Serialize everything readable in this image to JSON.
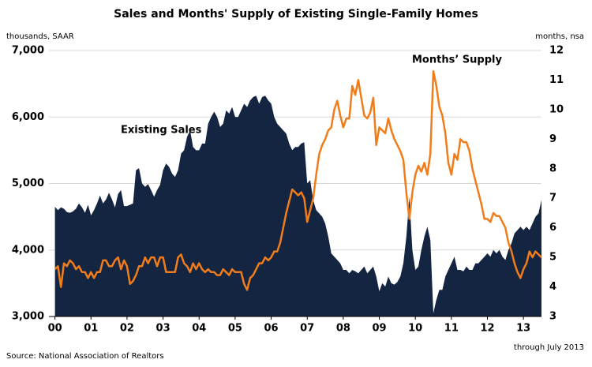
{
  "chart_data": {
    "type": "area-line",
    "title": "Sales and Months' Supply of Existing Single-Family Homes",
    "y_label": "thousands, SAAR",
    "y2_label": "months, nsa",
    "source": "Source: National Association of Realtors",
    "note": "through July 2013",
    "xlim": [
      -2,
      162
    ],
    "xticks": [
      {
        "value": 0,
        "label": "00"
      },
      {
        "value": 12,
        "label": "01"
      },
      {
        "value": 24,
        "label": "02"
      },
      {
        "value": 36,
        "label": "03"
      },
      {
        "value": 48,
        "label": "04"
      },
      {
        "value": 60,
        "label": "05"
      },
      {
        "value": 72,
        "label": "06"
      },
      {
        "value": 84,
        "label": "07"
      },
      {
        "value": 96,
        "label": "08"
      },
      {
        "value": 108,
        "label": "09"
      },
      {
        "value": 120,
        "label": "10"
      },
      {
        "value": 132,
        "label": "11"
      },
      {
        "value": 144,
        "label": "12"
      },
      {
        "value": 156,
        "label": "13"
      }
    ],
    "ylim": [
      3000,
      7000
    ],
    "yticks": [
      {
        "value": 3000,
        "label": "3,000"
      },
      {
        "value": 4000,
        "label": "4,000"
      },
      {
        "value": 5000,
        "label": "5,000"
      },
      {
        "value": 6000,
        "label": "6,000"
      },
      {
        "value": 7000,
        "label": "7,000"
      }
    ],
    "y2lim": [
      3,
      12
    ],
    "y2ticks": [
      3,
      4,
      5,
      6,
      7,
      8,
      9,
      10,
      11,
      12
    ],
    "grid": true,
    "series": [
      {
        "name": "Existing Sales",
        "color": "#142542",
        "kind": "area",
        "values": [
          4650,
          4600,
          4640,
          4620,
          4570,
          4560,
          4580,
          4620,
          4700,
          4640,
          4560,
          4680,
          4520,
          4600,
          4700,
          4820,
          4700,
          4760,
          4860,
          4760,
          4640,
          4840,
          4900,
          4660,
          4660,
          4680,
          4700,
          5200,
          5230,
          5000,
          4950,
          4990,
          4900,
          4800,
          4900,
          4980,
          5200,
          5300,
          5250,
          5150,
          5100,
          5200,
          5450,
          5500,
          5700,
          5800,
          5550,
          5500,
          5500,
          5600,
          5600,
          5900,
          6000,
          6080,
          6000,
          5850,
          5900,
          6100,
          6050,
          6150,
          6000,
          6000,
          6100,
          6200,
          6150,
          6250,
          6300,
          6320,
          6200,
          6300,
          6320,
          6250,
          6200,
          6000,
          5900,
          5850,
          5800,
          5750,
          5600,
          5500,
          5550,
          5550,
          5600,
          5620,
          5000,
          5050,
          4750,
          4600,
          4550,
          4500,
          4400,
          4200,
          3950,
          3900,
          3850,
          3800,
          3700,
          3700,
          3650,
          3700,
          3680,
          3650,
          3700,
          3750,
          3650,
          3700,
          3750,
          3600,
          3380,
          3500,
          3450,
          3600,
          3500,
          3480,
          3520,
          3600,
          3800,
          4200,
          4800,
          4000,
          3700,
          3750,
          4000,
          4200,
          4350,
          4150,
          3050,
          3250,
          3400,
          3400,
          3600,
          3700,
          3800,
          3900,
          3700,
          3700,
          3680,
          3750,
          3700,
          3700,
          3800,
          3800,
          3850,
          3900,
          3950,
          3900,
          4000,
          3950,
          4000,
          3900,
          3850,
          4000,
          4100,
          4250,
          4300,
          4350,
          4300,
          4350,
          4300,
          4400,
          4500,
          4550,
          4750
        ]
      },
      {
        "name": "Months’ Supply",
        "color": "#f07c1a",
        "kind": "line",
        "axis": "y2",
        "values": [
          4.6,
          4.7,
          4.0,
          4.8,
          4.7,
          4.9,
          4.8,
          4.6,
          4.7,
          4.5,
          4.5,
          4.3,
          4.5,
          4.3,
          4.5,
          4.5,
          4.9,
          4.9,
          4.7,
          4.7,
          4.9,
          5.0,
          4.6,
          4.9,
          4.7,
          4.1,
          4.2,
          4.4,
          4.7,
          4.7,
          5.0,
          4.8,
          5.0,
          5.0,
          4.7,
          5.0,
          5.0,
          4.5,
          4.5,
          4.5,
          4.5,
          5.0,
          5.1,
          4.8,
          4.7,
          4.5,
          4.8,
          4.6,
          4.8,
          4.6,
          4.5,
          4.6,
          4.5,
          4.5,
          4.4,
          4.4,
          4.6,
          4.5,
          4.4,
          4.6,
          4.5,
          4.5,
          4.5,
          4.1,
          3.9,
          4.3,
          4.4,
          4.6,
          4.8,
          4.8,
          5.0,
          4.9,
          5.0,
          5.2,
          5.2,
          5.5,
          6.0,
          6.5,
          6.9,
          7.3,
          7.2,
          7.1,
          7.2,
          7.0,
          6.2,
          6.6,
          7.0,
          7.8,
          8.5,
          8.8,
          9.0,
          9.3,
          9.4,
          10.0,
          10.3,
          9.8,
          9.4,
          9.7,
          9.7,
          10.8,
          10.5,
          11.0,
          10.4,
          9.8,
          9.7,
          9.9,
          10.4,
          8.8,
          9.4,
          9.3,
          9.2,
          9.7,
          9.3,
          9.0,
          8.8,
          8.6,
          8.3,
          7.2,
          6.3,
          7.2,
          7.8,
          8.1,
          7.9,
          8.2,
          7.8,
          8.5,
          11.3,
          10.8,
          10.1,
          9.8,
          9.2,
          8.2,
          7.8,
          8.5,
          8.3,
          9.0,
          8.9,
          8.9,
          8.6,
          8.0,
          7.6,
          7.2,
          6.8,
          6.3,
          6.3,
          6.2,
          6.5,
          6.4,
          6.4,
          6.2,
          6.0,
          5.5,
          5.2,
          4.8,
          4.5,
          4.3,
          4.6,
          4.8,
          5.2,
          5.0,
          5.2,
          5.1,
          5.0
        ]
      }
    ]
  }
}
